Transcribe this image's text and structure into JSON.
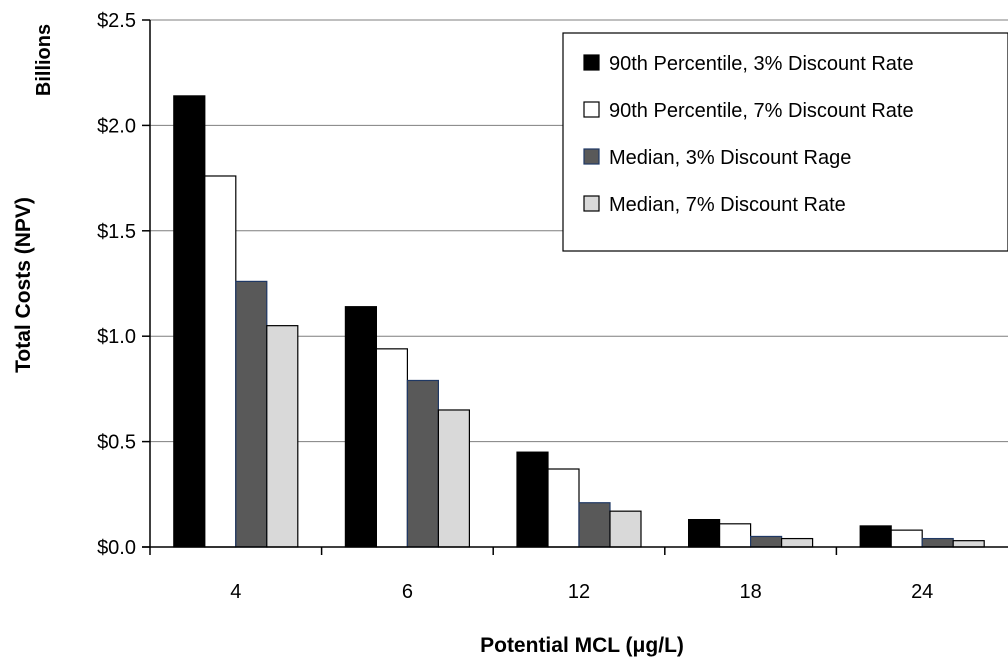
{
  "chart_data": {
    "type": "bar",
    "title": "",
    "xlabel": "Potential MCL (μg/L)",
    "ylabel": "Total Costs (NPV)",
    "yunits": "Billions",
    "categories": [
      "4",
      "6",
      "12",
      "18",
      "24"
    ],
    "ylim": [
      0,
      2.5
    ],
    "yticks": [
      0,
      0.5,
      1.0,
      1.5,
      2.0,
      2.5
    ],
    "ytick_labels": [
      "$0.0",
      "$0.5",
      "$1.0",
      "$1.5",
      "$2.0",
      "$2.5"
    ],
    "grid": true,
    "legend_position": "top-right",
    "series": [
      {
        "name": "90th Percentile, 3% Discount Rate",
        "color": "#000000",
        "values": [
          2.14,
          1.14,
          0.45,
          0.13,
          0.1
        ]
      },
      {
        "name": "90th Percentile, 7% Discount Rate",
        "color": "#ffffff",
        "values": [
          1.76,
          0.94,
          0.37,
          0.11,
          0.08
        ]
      },
      {
        "name": "Median, 3% Discount Rage",
        "color": "#595959",
        "values": [
          1.26,
          0.79,
          0.21,
          0.05,
          0.04
        ]
      },
      {
        "name": "Median, 7% Discount Rate",
        "color": "#d9d9d9",
        "values": [
          1.05,
          0.65,
          0.17,
          0.04,
          0.03
        ]
      }
    ]
  }
}
